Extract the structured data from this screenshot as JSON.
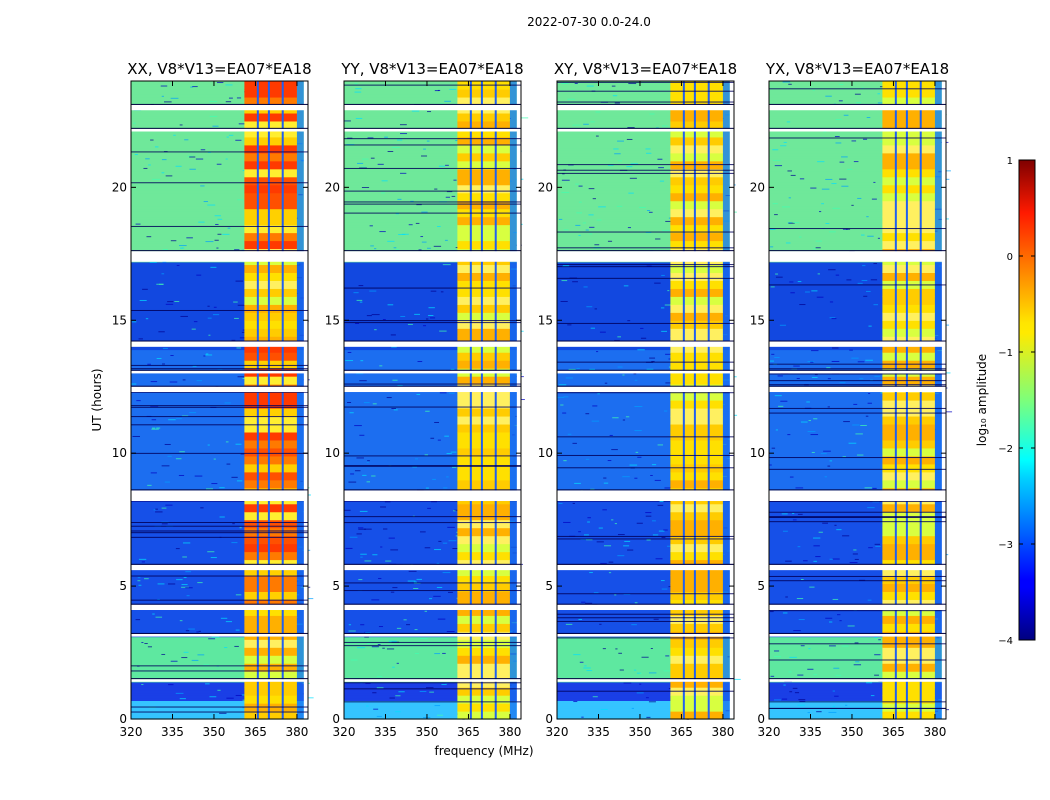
{
  "chart_data": {
    "type": "heatmap",
    "suptitle": "2022-07-30 0.0-24.0",
    "xlabel": "frequency (MHz)",
    "ylabel": "UT (hours)",
    "colorbar": {
      "label": "log₁₀ amplitude",
      "range": [
        -4,
        1
      ],
      "ticks": [
        "1",
        "0",
        "−1",
        "−2",
        "−3",
        "−4"
      ],
      "colormap": "jet"
    },
    "x_range": [
      320,
      384
    ],
    "y_range": [
      0,
      24
    ],
    "x_ticks": [
      "320",
      "335",
      "350",
      "365",
      "380"
    ],
    "y_ticks": [
      "0",
      "5",
      "10",
      "15",
      "20"
    ],
    "rfi_band_mhz": [
      361,
      380
    ],
    "flagged_time_bands_hours": [
      [
        1.4,
        1.5
      ],
      [
        3.1,
        3.2
      ],
      [
        4.1,
        4.3
      ],
      [
        5.6,
        5.8
      ],
      [
        8.2,
        8.6
      ],
      [
        12.3,
        12.5
      ],
      [
        13.0,
        13.1
      ],
      [
        14.0,
        14.2
      ],
      [
        17.2,
        17.6
      ],
      [
        22.1,
        22.2
      ],
      [
        22.9,
        23.1
      ]
    ],
    "panels": [
      {
        "title": "XX, V8*V13=EA07*EA18"
      },
      {
        "title": "YY, V8*V13=EA07*EA18"
      },
      {
        "title": "XY, V8*V13=EA07*EA18"
      },
      {
        "title": "YX, V8*V13=EA07*EA18"
      }
    ]
  }
}
